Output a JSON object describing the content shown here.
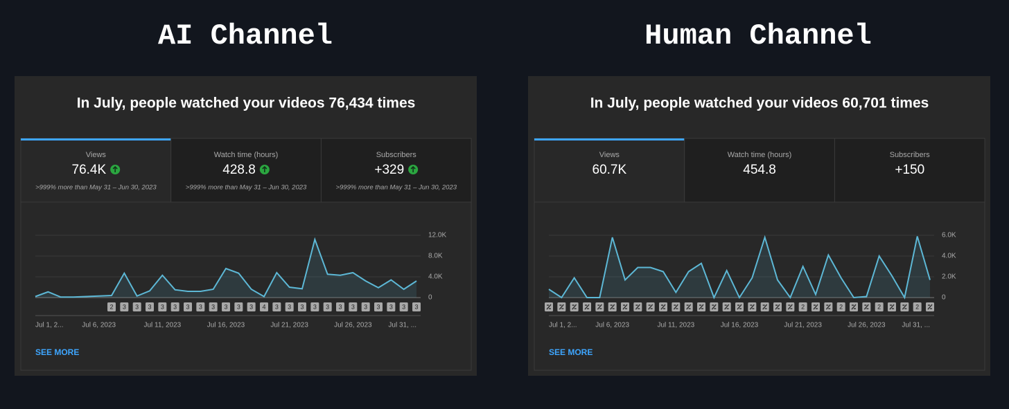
{
  "titles": [
    "AI Channel",
    "Human Channel"
  ],
  "panels": [
    {
      "heading": "In July, people watched your videos 76,434 times",
      "tabs": [
        {
          "label": "Views",
          "value": "76.4K",
          "note": ">999% more than May 31 – Jun 30, 2023"
        },
        {
          "label": "Watch time (hours)",
          "value": "428.8",
          "note": ">999% more than May 31 – Jun 30, 2023"
        },
        {
          "label": "Subscribers",
          "value": "+329",
          "note": ">999% more than May 31 – Jun 30, 2023"
        }
      ],
      "trend_up": true,
      "see_more": "SEE MORE"
    },
    {
      "heading": "In July, people watched your videos 60,701 times",
      "tabs": [
        {
          "label": "Views",
          "value": "60.7K"
        },
        {
          "label": "Watch time (hours)",
          "value": "454.8"
        },
        {
          "label": "Subscribers",
          "value": "+150"
        }
      ],
      "trend_up": false,
      "see_more": "SEE MORE"
    }
  ],
  "chart_data": [
    {
      "type": "line",
      "color": "#5db8d6",
      "categories": [
        "Jul 1, 2...",
        null,
        null,
        null,
        null,
        "Jul 6, 2023",
        null,
        null,
        null,
        null,
        "Jul 11, 2023",
        null,
        null,
        null,
        null,
        "Jul 16, 2023",
        null,
        null,
        null,
        null,
        "Jul 21, 2023",
        null,
        null,
        null,
        null,
        "Jul 26, 2023",
        null,
        null,
        null,
        null,
        "Jul 31, ..."
      ],
      "values": [
        200,
        1100,
        100,
        100,
        200,
        300,
        400,
        4700,
        300,
        1300,
        4300,
        1500,
        1200,
        1200,
        1600,
        5600,
        4700,
        1600,
        200,
        4800,
        2000,
        1700,
        11200,
        4500,
        4300,
        4800,
        3200,
        1900,
        3400,
        1600,
        3200
      ],
      "ylim": [
        0,
        12000
      ],
      "yticks": [
        0,
        {
          "value": 4000,
          "label": "4.0K"
        },
        {
          "value": 8000,
          "label": "8.0K"
        },
        {
          "value": 12000,
          "label": "12.0K"
        }
      ],
      "markers": [
        null,
        null,
        null,
        null,
        null,
        null,
        "2",
        "3",
        "3",
        "3",
        "3",
        "3",
        "3",
        "3",
        "3",
        "3",
        "3",
        "3",
        "4",
        "3",
        "3",
        "3",
        "3",
        "3",
        "3",
        "3",
        "3",
        "3",
        "3",
        "3",
        "3"
      ],
      "icon_badges": false
    },
    {
      "type": "line",
      "color": "#5db8d6",
      "categories": [
        "Jul 1, 2...",
        null,
        null,
        null,
        null,
        "Jul 6, 2023",
        null,
        null,
        null,
        null,
        "Jul 11, 2023",
        null,
        null,
        null,
        null,
        "Jul 16, 2023",
        null,
        null,
        null,
        null,
        "Jul 21, 2023",
        null,
        null,
        null,
        null,
        "Jul 26, 2023",
        null,
        null,
        null,
        null,
        "Jul 31, ..."
      ],
      "values": [
        800,
        0,
        1900,
        0,
        0,
        5800,
        1700,
        2900,
        2900,
        2500,
        500,
        2500,
        3300,
        0,
        2600,
        0,
        1900,
        5800,
        1700,
        0,
        3000,
        300,
        4100,
        1900,
        0,
        100,
        4000,
        2100,
        0,
        5900,
        1700
      ],
      "ylim": [
        0,
        6000
      ],
      "yticks": [
        0,
        {
          "value": 2000,
          "label": "2.0K"
        },
        {
          "value": 4000,
          "label": "4.0K"
        },
        {
          "value": 6000,
          "label": "6.0K"
        }
      ],
      "markers": [
        null,
        null,
        null,
        null,
        null,
        null,
        null,
        null,
        null,
        null,
        null,
        null,
        null,
        null,
        null,
        null,
        null,
        null,
        null,
        null,
        "2",
        null,
        null,
        "2",
        null,
        null,
        "2",
        null,
        null,
        "2",
        null
      ],
      "icon_badges": true
    }
  ]
}
